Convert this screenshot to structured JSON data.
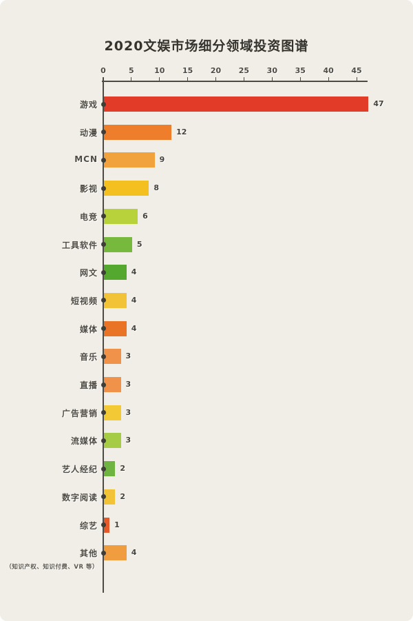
{
  "page": {
    "background": "#f1eee7"
  },
  "chart_data": {
    "type": "bar",
    "orientation": "horizontal",
    "title": "2020文娱市场细分领域投资图谱",
    "categories": [
      "游戏",
      "动漫",
      "MCN",
      "影视",
      "电竞",
      "工具软件",
      "网文",
      "短视频",
      "媒体",
      "音乐",
      "直播",
      "广告营销",
      "流媒体",
      "艺人经纪",
      "数字阅读",
      "综艺",
      "其他"
    ],
    "values": [
      47,
      12,
      9,
      8,
      6,
      5,
      4,
      4,
      4,
      3,
      3,
      3,
      3,
      2,
      2,
      1,
      4
    ],
    "bar_colors": [
      "#e23c28",
      "#ee7d2c",
      "#f2a23c",
      "#f3c01f",
      "#b8d23c",
      "#76b93c",
      "#55a82e",
      "#f3c337",
      "#ea7425",
      "#f0924a",
      "#f0924a",
      "#f3c935",
      "#a6cc45",
      "#6fb440",
      "#f3c337",
      "#e6592b",
      "#f09d3f"
    ],
    "x_ticks": [
      0,
      5,
      10,
      15,
      20,
      25,
      30,
      35,
      40,
      45
    ],
    "xlim": [
      0,
      47
    ],
    "footnote": "（知识产权、知识付费、VR 等）",
    "legend": "none",
    "grid": false
  }
}
